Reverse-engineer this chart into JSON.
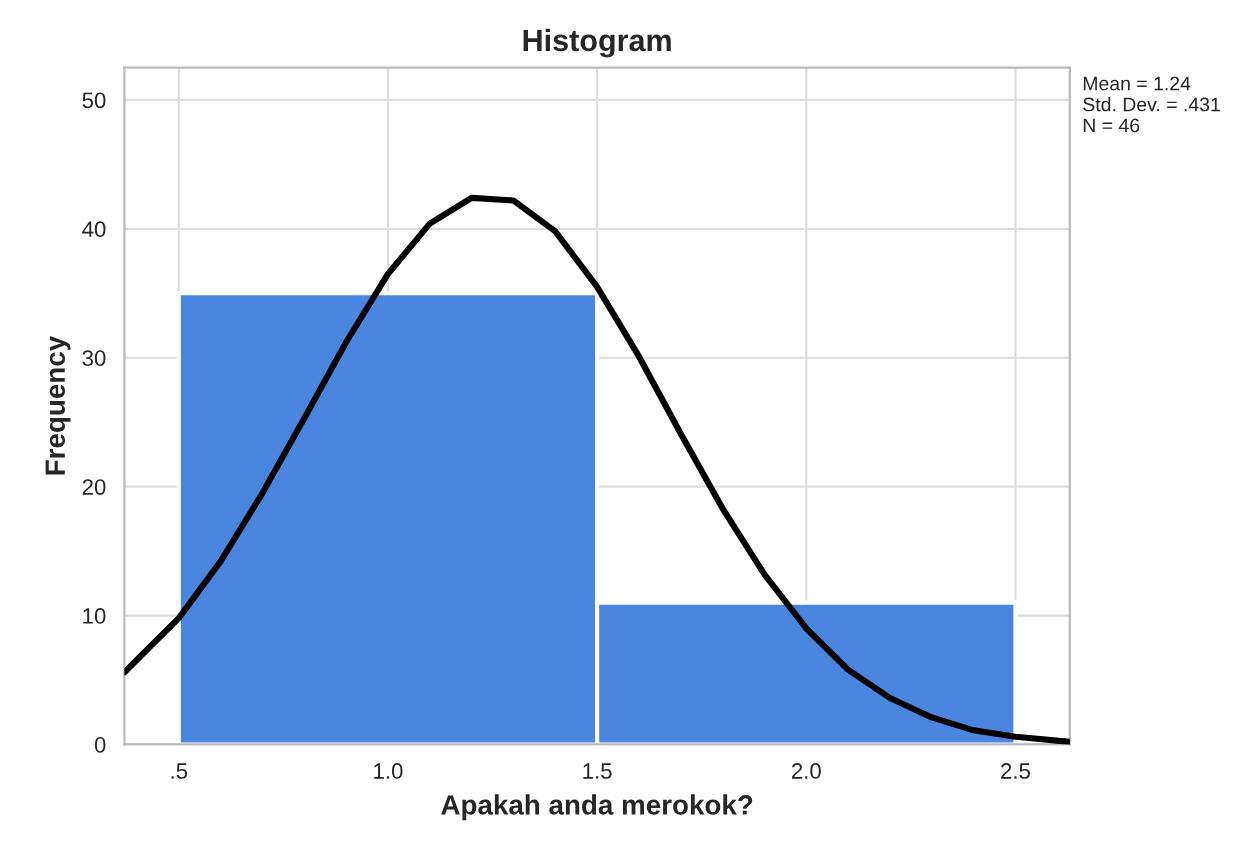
{
  "chart_data": {
    "type": "histogram",
    "title": "Histogram",
    "xlabel": "Apakah anda merokok?",
    "ylabel": "Frequency",
    "bins": [
      0.5,
      1.5,
      2.5
    ],
    "values": [
      35,
      11
    ],
    "color": "#4a86e0",
    "series": [
      {
        "type": "line",
        "color": "#000000",
        "x": [
          0.37,
          0.5,
          0.6,
          0.7,
          0.8,
          0.9,
          1.0,
          1.1,
          1.2,
          1.3,
          1.4,
          1.5,
          1.6,
          1.7,
          1.8,
          1.9,
          2.0,
          2.1,
          2.2,
          2.3,
          2.4,
          2.5,
          2.63
        ],
        "values": [
          5.6,
          9.8,
          14.2,
          19.5,
          25.3,
          31.2,
          36.5,
          40.4,
          42.4,
          42.2,
          39.8,
          35.5,
          30.1,
          24.1,
          18.3,
          13.2,
          9.0,
          5.8,
          3.6,
          2.1,
          1.1,
          0.6,
          0.2
        ]
      }
    ],
    "xlim": [
      0.37,
      2.63
    ],
    "ylim": [
      0,
      52.5
    ],
    "xticks": [
      {
        "value": 0.5,
        "label": ".5"
      },
      {
        "value": 1.0,
        "label": "1.0"
      },
      {
        "value": 1.5,
        "label": "1.5"
      },
      {
        "value": 2.0,
        "label": "2.0"
      },
      {
        "value": 2.5,
        "label": "2.5"
      }
    ],
    "yticks": [
      0,
      10,
      20,
      30,
      40,
      50
    ],
    "grid": true,
    "annotations": [
      "Mean = 1.24\nStd. Dev. = .431\nN = 46"
    ]
  }
}
